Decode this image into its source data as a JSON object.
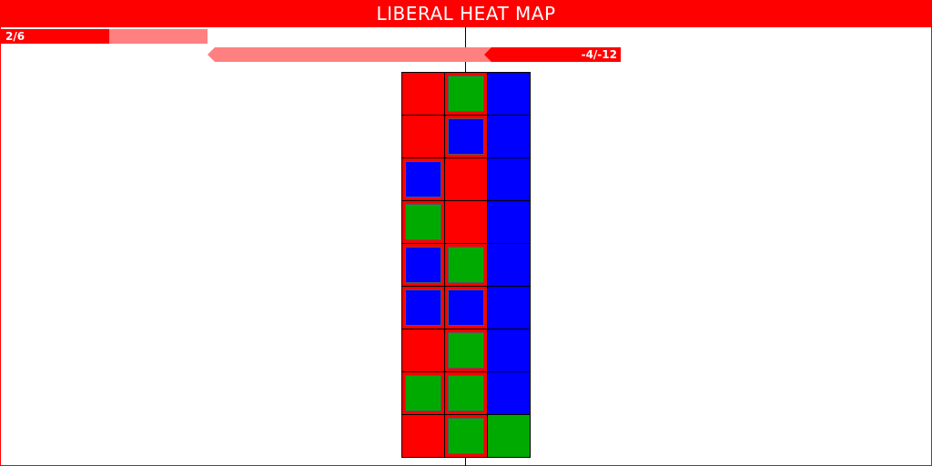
{
  "title": "LIBERAL HEAT MAP",
  "colors": {
    "red": "#ff0000",
    "blue": "#0000ff",
    "green": "#00aa00",
    "light_red": "#ff8080"
  },
  "score": {
    "label": "2/6",
    "value": 2,
    "max": 6
  },
  "balance": {
    "label": "-4/-12",
    "value": -4,
    "max": -12
  },
  "heat_map": {
    "rows": [
      [
        {
          "bg": "red"
        },
        {
          "bg": "red",
          "inner": "green"
        },
        {
          "bg": "blue"
        }
      ],
      [
        {
          "bg": "red"
        },
        {
          "bg": "red",
          "inner": "blue"
        },
        {
          "bg": "blue"
        }
      ],
      [
        {
          "bg": "red",
          "inner": "blue"
        },
        {
          "bg": "red"
        },
        {
          "bg": "blue"
        }
      ],
      [
        {
          "bg": "red",
          "inner": "green"
        },
        {
          "bg": "red"
        },
        {
          "bg": "blue"
        }
      ],
      [
        {
          "bg": "red",
          "inner": "blue"
        },
        {
          "bg": "red",
          "inner": "green"
        },
        {
          "bg": "blue"
        }
      ],
      [
        {
          "bg": "red",
          "inner": "blue"
        },
        {
          "bg": "red",
          "inner": "blue"
        },
        {
          "bg": "blue"
        }
      ],
      [
        {
          "bg": "red"
        },
        {
          "bg": "red",
          "inner": "green"
        },
        {
          "bg": "blue"
        }
      ],
      [
        {
          "bg": "red",
          "inner": "green"
        },
        {
          "bg": "red",
          "inner": "green"
        },
        {
          "bg": "blue"
        }
      ],
      [
        {
          "bg": "red"
        },
        {
          "bg": "red",
          "inner": "green"
        },
        {
          "bg": "green"
        }
      ]
    ]
  }
}
